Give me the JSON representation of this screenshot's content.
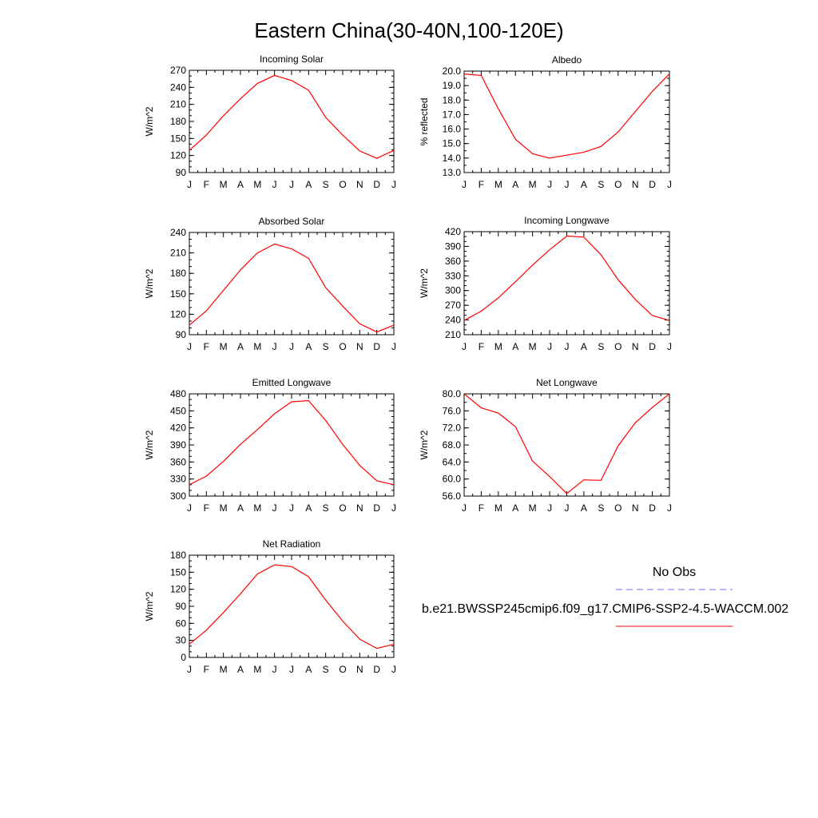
{
  "figure_title": "Eastern China(30-40N,100-120E)",
  "month_ticks": [
    "J",
    "F",
    "M",
    "A",
    "M",
    "J",
    "J",
    "A",
    "S",
    "O",
    "N",
    "D",
    "J"
  ],
  "line_color": "#ff0000",
  "obs_color": "#7070ff",
  "legend": {
    "obs_label": "No Obs",
    "model_label": "b.e21.BWSSP245cmip6.f09_g17.CMIP6-SSP2-4.5-WACCM.002"
  },
  "chart_data": [
    {
      "type": "line",
      "title": "Incoming Solar",
      "ylabel": "W/m^2",
      "ylim": [
        90,
        270
      ],
      "yticks": [
        "90",
        "120",
        "150",
        "180",
        "210",
        "240",
        "270"
      ],
      "ytick_values": [
        90,
        120,
        150,
        180,
        210,
        240,
        270
      ],
      "minor_step": 10,
      "series": [
        {
          "values": [
            129,
            156,
            190,
            220,
            247,
            261,
            252,
            235,
            187,
            156,
            128,
            115,
            129
          ]
        }
      ]
    },
    {
      "type": "line",
      "title": "Albedo",
      "ylabel": "% reflected",
      "ylim": [
        13.0,
        20.0
      ],
      "yticks": [
        "13.0",
        "14.0",
        "15.0",
        "16.0",
        "17.0",
        "18.0",
        "19.0",
        "20.0"
      ],
      "ytick_values": [
        13,
        14,
        15,
        16,
        17,
        18,
        19,
        20
      ],
      "minor_step": 0.5,
      "series": [
        {
          "values": [
            19.8,
            19.7,
            17.4,
            15.3,
            14.3,
            14.0,
            14.2,
            14.4,
            14.8,
            15.8,
            17.2,
            18.6,
            19.8
          ]
        }
      ]
    },
    {
      "type": "line",
      "title": "Absorbed Solar",
      "ylabel": "W/m^2",
      "ylim": [
        90,
        240
      ],
      "yticks": [
        "90",
        "120",
        "150",
        "180",
        "210",
        "240"
      ],
      "ytick_values": [
        90,
        120,
        150,
        180,
        210,
        240
      ],
      "minor_step": 10,
      "series": [
        {
          "values": [
            104,
            125,
            155,
            185,
            210,
            223,
            216,
            202,
            159,
            132,
            106,
            94,
            104
          ]
        }
      ]
    },
    {
      "type": "line",
      "title": "Incoming Longwave",
      "ylabel": "W/m^2",
      "ylim": [
        210,
        420
      ],
      "yticks": [
        "210",
        "240",
        "270",
        "300",
        "330",
        "360",
        "390",
        "420"
      ],
      "ytick_values": [
        210,
        240,
        270,
        300,
        330,
        360,
        390,
        420
      ],
      "minor_step": 10,
      "series": [
        {
          "values": [
            239,
            258,
            285,
            318,
            352,
            383,
            411,
            409,
            373,
            322,
            282,
            249,
            239
          ]
        }
      ]
    },
    {
      "type": "line",
      "title": "Emitted Longwave",
      "ylabel": "W/m^2",
      "ylim": [
        300,
        480
      ],
      "yticks": [
        "300",
        "330",
        "360",
        "390",
        "420",
        "450",
        "480"
      ],
      "ytick_values": [
        300,
        330,
        360,
        390,
        420,
        450,
        480
      ],
      "minor_step": 10,
      "series": [
        {
          "values": [
            320,
            335,
            361,
            391,
            417,
            445,
            466,
            468,
            433,
            391,
            354,
            327,
            320
          ]
        }
      ]
    },
    {
      "type": "line",
      "title": "Net Longwave",
      "ylabel": "W/m^2",
      "ylim": [
        56.0,
        80.0
      ],
      "yticks": [
        "56.0",
        "60.0",
        "64.0",
        "68.0",
        "72.0",
        "76.0",
        "80.0"
      ],
      "ytick_values": [
        56,
        60,
        64,
        68,
        72,
        76,
        80
      ],
      "minor_step": 2,
      "series": [
        {
          "values": [
            80.0,
            76.7,
            75.5,
            72.3,
            64.2,
            60.6,
            56.6,
            59.8,
            59.7,
            67.8,
            73.2,
            76.8,
            80.0
          ]
        }
      ]
    },
    {
      "type": "line",
      "title": "Net Radiation",
      "ylabel": "W/m^2",
      "ylim": [
        0,
        180
      ],
      "yticks": [
        "0",
        "30",
        "60",
        "90",
        "120",
        "150",
        "180"
      ],
      "ytick_values": [
        0,
        30,
        60,
        90,
        120,
        150,
        180
      ],
      "minor_step": 10,
      "series": [
        {
          "values": [
            23,
            48,
            79,
            112,
            147,
            163,
            160,
            142,
            101,
            64,
            32,
            16,
            23
          ]
        }
      ]
    }
  ]
}
